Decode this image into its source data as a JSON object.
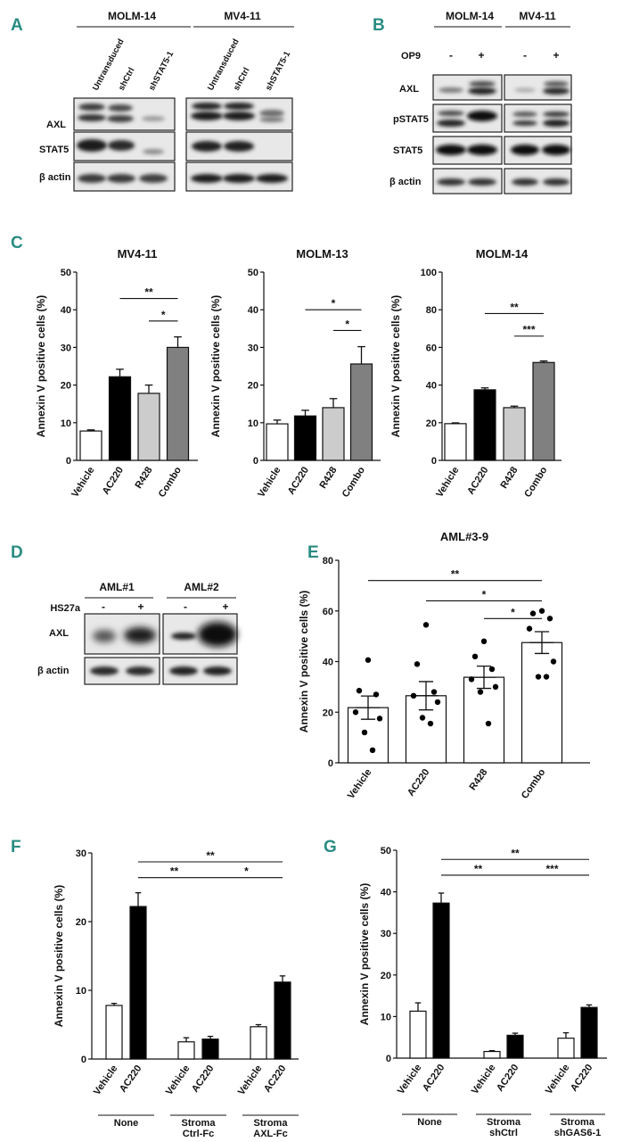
{
  "panel_letters": {
    "A": "A",
    "B": "B",
    "C": "C",
    "D": "D",
    "E": "E",
    "F": "F",
    "G": "G"
  },
  "panelA": {
    "groups": [
      "MOLM-14",
      "MV4-11"
    ],
    "lanes": [
      "Untransduced",
      "shCtrl",
      "shSTAT5-1"
    ],
    "rows": [
      "AXL",
      "STAT5",
      "β actin"
    ]
  },
  "panelB": {
    "groups": [
      "MOLM-14",
      "MV4-11"
    ],
    "treat_label": "OP9",
    "lane_signs": [
      "-",
      "+",
      "-",
      "+"
    ],
    "rows": [
      "AXL",
      "pSTAT5",
      "STAT5",
      "β actin"
    ]
  },
  "panelD": {
    "groups": [
      "AML#1",
      "AML#2"
    ],
    "treat_label": "HS27a",
    "lane_signs": [
      "-",
      "+",
      "-",
      "+"
    ],
    "rows": [
      "AXL",
      "β actin"
    ]
  },
  "y_axis_label": "Annexin V positive cells (%)",
  "chart_data": [
    {
      "id": "C1",
      "type": "bar",
      "title": "MV4-11",
      "categories": [
        "Vehicle",
        "AC220",
        "R428",
        "Combo"
      ],
      "values": [
        7.8,
        22.2,
        17.8,
        30.0
      ],
      "errors": [
        0.3,
        2.0,
        2.2,
        2.8
      ],
      "fills": [
        "#ffffff",
        "#000000",
        "#cccccc",
        "#808080"
      ],
      "ylim": [
        0,
        50
      ],
      "yticks": [
        0,
        10,
        20,
        30,
        40,
        50
      ],
      "ylabel": "Annexin V positive cells (%)",
      "significance": [
        {
          "from": 1,
          "to": 3,
          "label": "**",
          "y": 43
        },
        {
          "from": 2,
          "to": 3,
          "label": "*",
          "y": 37
        }
      ]
    },
    {
      "id": "C2",
      "type": "bar",
      "title": "MOLM-13",
      "categories": [
        "Vehicle",
        "AC220",
        "R428",
        "Combo"
      ],
      "values": [
        9.7,
        11.8,
        14.0,
        25.6
      ],
      "errors": [
        1.0,
        1.5,
        2.4,
        4.6
      ],
      "fills": [
        "#ffffff",
        "#000000",
        "#cccccc",
        "#808080"
      ],
      "ylim": [
        0,
        50
      ],
      "yticks": [
        0,
        10,
        20,
        30,
        40,
        50
      ],
      "ylabel": "Annexin V positive cells (%)",
      "significance": [
        {
          "from": 1,
          "to": 3,
          "label": "*",
          "y": 40
        },
        {
          "from": 2,
          "to": 3,
          "label": "*",
          "y": 34.5
        }
      ]
    },
    {
      "id": "C3",
      "type": "bar",
      "title": "MOLM-14",
      "categories": [
        "Vehicle",
        "AC220",
        "R428",
        "Combo"
      ],
      "values": [
        19.5,
        37.5,
        28.0,
        52.0
      ],
      "errors": [
        0.4,
        1.0,
        0.8,
        0.8
      ],
      "fills": [
        "#ffffff",
        "#000000",
        "#cccccc",
        "#808080"
      ],
      "ylim": [
        0,
        100
      ],
      "yticks": [
        0,
        20,
        40,
        60,
        80,
        100
      ],
      "ylabel": "Annexin V positive cells (%)",
      "significance": [
        {
          "from": 1,
          "to": 3,
          "label": "**",
          "y": 78
        },
        {
          "from": 2,
          "to": 3,
          "label": "***",
          "y": 66
        }
      ]
    },
    {
      "id": "E",
      "type": "scatter",
      "title": "AML#3-9",
      "categories": [
        "Vehicle",
        "AC220",
        "R428",
        "Combo"
      ],
      "values": [
        21.8,
        26.5,
        33.8,
        47.5
      ],
      "errors": [
        4.6,
        5.6,
        4.4,
        4.3
      ],
      "points": [
        [
          40.6,
          28.5,
          27.0,
          20.0,
          17.5,
          12.0,
          5.0
        ],
        [
          54.5,
          39.0,
          28.0,
          26.5,
          24.0,
          17.8,
          15.5
        ],
        [
          48.0,
          42.0,
          37.0,
          33.0,
          30.0,
          28.0,
          15.5
        ],
        [
          60.0,
          59.0,
          57.0,
          53.0,
          40.0,
          34.0,
          34.0
        ]
      ],
      "ylim": [
        0,
        80
      ],
      "yticks": [
        0,
        20,
        40,
        60,
        80
      ],
      "ylabel": "Annexin V positive cells (%)",
      "significance": [
        {
          "from": 0,
          "to": 3,
          "label": "**",
          "y": 72
        },
        {
          "from": 1,
          "to": 3,
          "label": "*",
          "y": 64
        },
        {
          "from": 2,
          "to": 3,
          "label": "*",
          "y": 57
        }
      ]
    },
    {
      "id": "F",
      "type": "bar",
      "title": "",
      "categories": [
        "Vehicle",
        "AC220",
        "Vehicle",
        "AC220",
        "Vehicle",
        "AC220"
      ],
      "values": [
        7.8,
        22.2,
        2.5,
        2.9,
        4.7,
        11.2
      ],
      "errors": [
        0.3,
        2.0,
        0.6,
        0.4,
        0.3,
        0.9
      ],
      "fills": [
        "#ffffff",
        "#000000",
        "#ffffff",
        "#000000",
        "#ffffff",
        "#000000"
      ],
      "groups": [
        {
          "lines": [
            "None"
          ],
          "start": 0,
          "end": 1
        },
        {
          "lines": [
            "Stroma",
            "Ctrl-Fc"
          ],
          "start": 2,
          "end": 3
        },
        {
          "lines": [
            "Stroma",
            "AXL-Fc"
          ],
          "start": 4,
          "end": 5
        }
      ],
      "ylim": [
        0,
        30
      ],
      "yticks": [
        0,
        10,
        20,
        30
      ],
      "ylabel": "Annexin V positive cells (%)",
      "significance": [
        {
          "from": 1,
          "to": 5,
          "label": "**",
          "y": 28.7
        },
        {
          "from": 1,
          "to": 3,
          "label": "**",
          "y": 26.4
        },
        {
          "from": 3,
          "to": 5,
          "label": "*",
          "y": 26.4
        }
      ]
    },
    {
      "id": "G",
      "type": "bar",
      "title": "",
      "categories": [
        "Vehicle",
        "AC220",
        "Vehicle",
        "AC220",
        "Vehicle",
        "AC220"
      ],
      "values": [
        11.3,
        37.3,
        1.6,
        5.5,
        4.8,
        12.2
      ],
      "errors": [
        2.0,
        2.4,
        0.2,
        0.5,
        1.3,
        0.6
      ],
      "fills": [
        "#ffffff",
        "#000000",
        "#ffffff",
        "#000000",
        "#ffffff",
        "#000000"
      ],
      "groups": [
        {
          "lines": [
            "None"
          ],
          "start": 0,
          "end": 1
        },
        {
          "lines": [
            "Stroma",
            "shCtrl"
          ],
          "start": 2,
          "end": 3
        },
        {
          "lines": [
            "Stroma",
            "shGAS6-1"
          ],
          "start": 4,
          "end": 5
        }
      ],
      "ylim": [
        0,
        50
      ],
      "yticks": [
        0,
        10,
        20,
        30,
        40,
        50
      ],
      "ylabel": "Annexin V positive cells (%)",
      "significance": [
        {
          "from": 1,
          "to": 5,
          "label": "**",
          "y": 47.8
        },
        {
          "from": 1,
          "to": 3,
          "label": "**",
          "y": 44
        },
        {
          "from": 3,
          "to": 5,
          "label": "***",
          "y": 44
        }
      ]
    }
  ]
}
